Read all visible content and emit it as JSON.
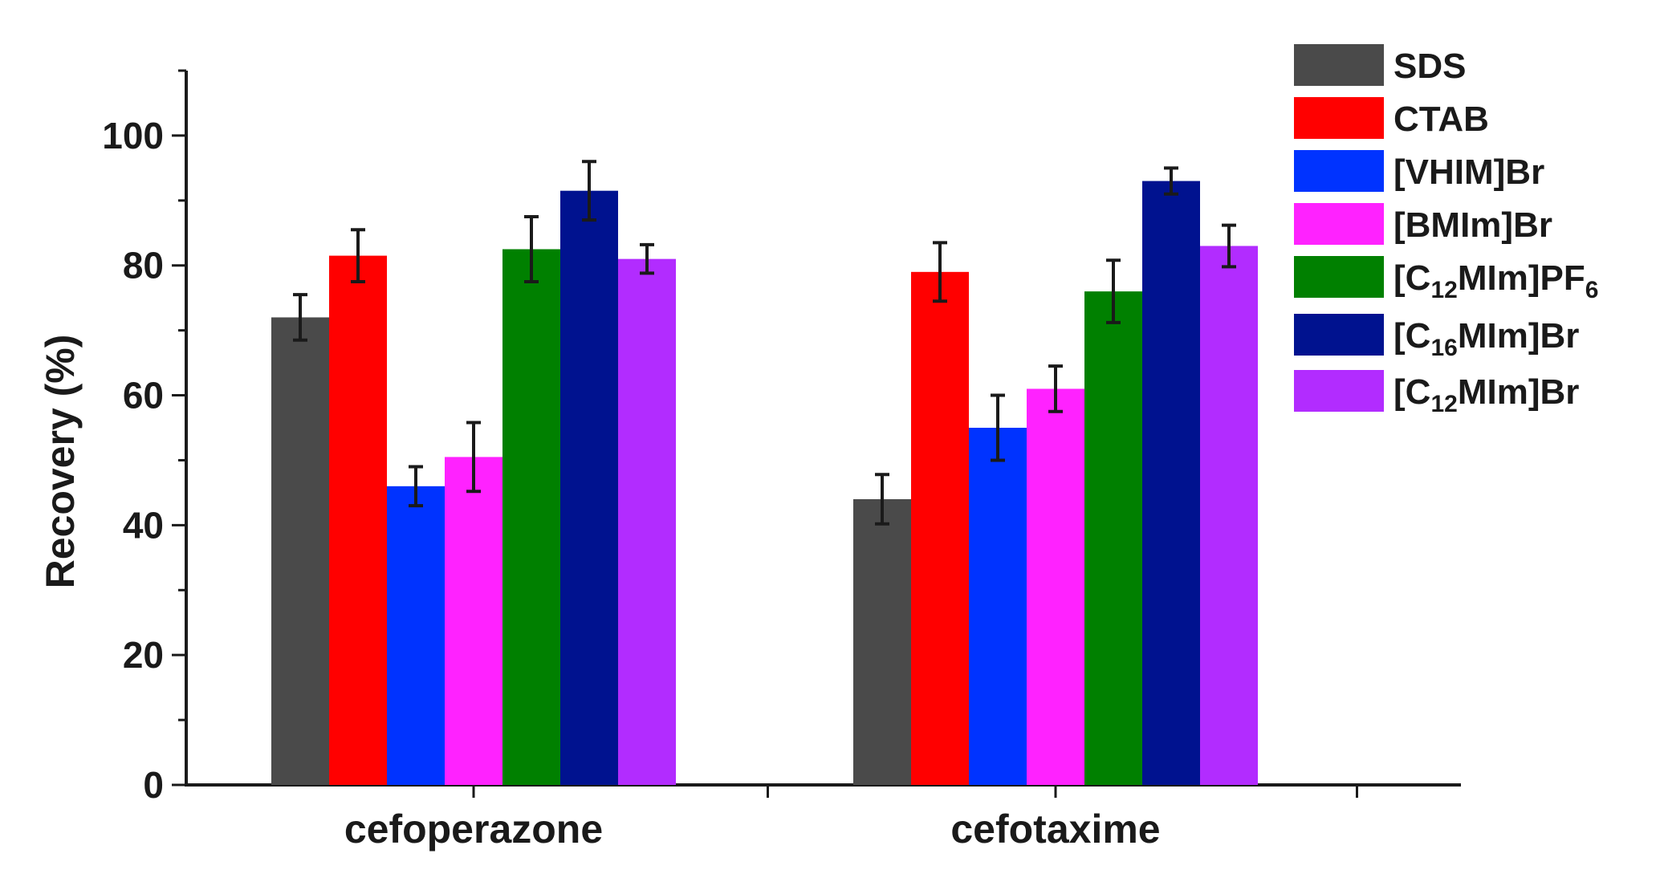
{
  "chart_data": {
    "type": "bar",
    "title": "",
    "xlabel": "",
    "ylabel": "Recovery (%)",
    "ylim": [
      0,
      110
    ],
    "yticks": [
      0,
      20,
      40,
      60,
      80,
      100
    ],
    "grid": false,
    "legend_position": "top-right",
    "categories": [
      "cefoperazone",
      "cefotaxime"
    ],
    "series": [
      {
        "name": "SDS",
        "color": "#4a4a4a",
        "values": [
          72,
          44
        ],
        "errors": [
          3.5,
          3.8
        ],
        "legend_parts": [
          {
            "t": "SDS",
            "sub": false
          }
        ]
      },
      {
        "name": "CTAB",
        "color": "#ff0000",
        "values": [
          81.5,
          79
        ],
        "errors": [
          4,
          4.5
        ],
        "legend_parts": [
          {
            "t": "CTAB",
            "sub": false
          }
        ]
      },
      {
        "name": "[VHIM]Br",
        "color": "#0033ff",
        "values": [
          46,
          55
        ],
        "errors": [
          3,
          5
        ],
        "legend_parts": [
          {
            "t": "[VHIM]Br",
            "sub": false
          }
        ]
      },
      {
        "name": "[BMIm]Br",
        "color": "#ff22ff",
        "values": [
          50.5,
          61
        ],
        "errors": [
          5.3,
          3.5
        ],
        "legend_parts": [
          {
            "t": "[BMIm]Br",
            "sub": false
          }
        ]
      },
      {
        "name": "[C12MIm]PF6",
        "color": "#008000",
        "values": [
          82.5,
          76
        ],
        "errors": [
          5,
          4.8
        ],
        "legend_parts": [
          {
            "t": "[C",
            "sub": false
          },
          {
            "t": "12",
            "sub": true
          },
          {
            "t": "MIm]PF",
            "sub": false
          },
          {
            "t": "6",
            "sub": true
          }
        ]
      },
      {
        "name": "[C16MIm]Br",
        "color": "#00128f",
        "values": [
          91.5,
          93
        ],
        "errors": [
          4.5,
          2
        ],
        "legend_parts": [
          {
            "t": "[C",
            "sub": false
          },
          {
            "t": "16",
            "sub": true
          },
          {
            "t": "MIm]Br",
            "sub": false
          }
        ]
      },
      {
        "name": "[C12MIm]Br",
        "color": "#b22cff",
        "values": [
          81,
          83
        ],
        "errors": [
          2.2,
          3.2
        ],
        "legend_parts": [
          {
            "t": "[C",
            "sub": false
          },
          {
            "t": "12",
            "sub": true
          },
          {
            "t": "MIm]Br",
            "sub": false
          }
        ]
      }
    ]
  }
}
